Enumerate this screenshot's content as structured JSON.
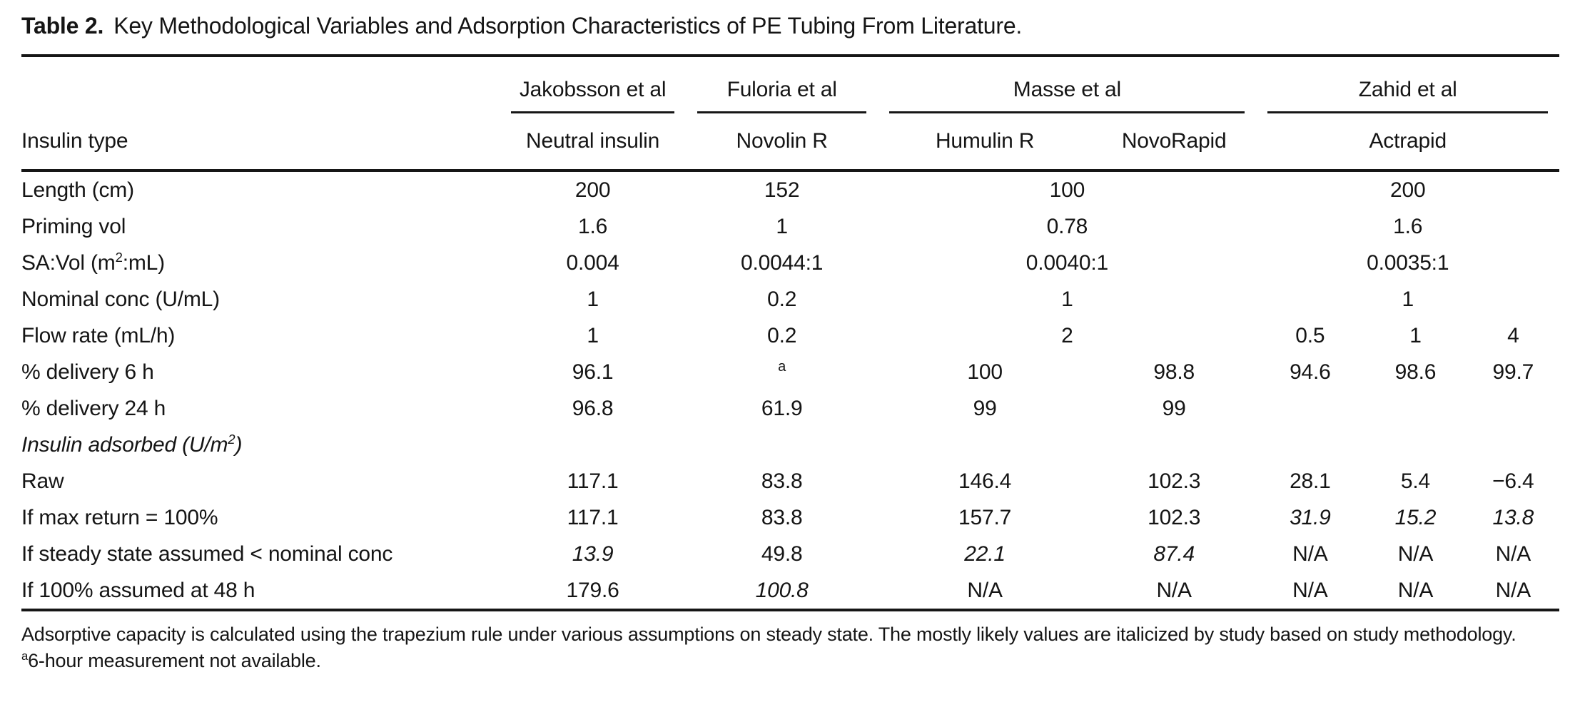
{
  "title": {
    "label": "Table 2.",
    "text": "Key Methodological Variables and Adsorption Characteristics of PE Tubing From Literature."
  },
  "colors": {
    "background": "#ffffff",
    "text": "#151515",
    "rules": "#161616"
  },
  "header": {
    "studies": [
      "Jakobsson et al",
      "Fuloria et al",
      "Masse et al",
      "Zahid et al"
    ],
    "row_label": "Insulin type",
    "insulins": [
      "Neutral insulin",
      "Novolin R",
      "Humulin R",
      "NovoRapid",
      "Actrapid"
    ]
  },
  "rows": {
    "len": {
      "label": "Length (cm)",
      "jakobsson": "200",
      "fuloria": "152",
      "masse": "100",
      "zahid": "200"
    },
    "priming": {
      "label": "Priming vol",
      "jakobsson": "1.6",
      "fuloria": "1",
      "masse": "0.78",
      "zahid": "1.6"
    },
    "savol": {
      "label_pre": "SA:Vol (m",
      "label_sup": "2",
      "label_post": ":mL)",
      "jakobsson": "0.004",
      "fuloria": "0.0044:1",
      "masse": "0.0040:1",
      "zahid": "0.0035:1"
    },
    "nominal": {
      "label": "Nominal conc (U/mL)",
      "jakobsson": "1",
      "fuloria": "0.2",
      "masse": "1",
      "zahid": "1"
    },
    "flow": {
      "label": "Flow rate (mL/h)",
      "jakobsson": "1",
      "fuloria": "0.2",
      "masse": "2",
      "zahid_05": "0.5",
      "zahid_1": "1",
      "zahid_4": "4"
    },
    "d6": {
      "label": "% delivery 6 h",
      "jakobsson": "96.1",
      "fuloria_note": "a",
      "humulin": "100",
      "novorapid": "98.8",
      "zahid_05": "94.6",
      "zahid_1": "98.6",
      "zahid_4": "99.7"
    },
    "d24": {
      "label": "% delivery 24 h",
      "jakobsson": "96.8",
      "fuloria": "61.9",
      "humulin": "99",
      "novorapid": "99",
      "zahid_05": "",
      "zahid_1": "",
      "zahid_4": ""
    },
    "adsorbed": {
      "label_pre": "Insulin adsorbed (U/m",
      "label_sup": "2",
      "label_post": ")"
    },
    "raw": {
      "label": "Raw",
      "jakobsson": "117.1",
      "fuloria": "83.8",
      "humulin": "146.4",
      "novorapid": "102.3",
      "zahid_05": "28.1",
      "zahid_1": "5.4",
      "zahid_4": "−6.4"
    },
    "maxret": {
      "label": "If max return = 100%",
      "jakobsson": "117.1",
      "fuloria": "83.8",
      "humulin": "157.7",
      "novorapid": "102.3",
      "zahid_05": "31.9",
      "zahid_1": "15.2",
      "zahid_4": "13.8"
    },
    "steady": {
      "label": "If steady state assumed < nominal conc",
      "jakobsson": "13.9",
      "fuloria": "49.8",
      "humulin": "22.1",
      "novorapid": "87.4",
      "zahid_05": "N/A",
      "zahid_1": "N/A",
      "zahid_4": "N/A"
    },
    "h48": {
      "label": "If 100% assumed at 48 h",
      "jakobsson": "179.6",
      "fuloria": "100.8",
      "humulin": "N/A",
      "novorapid": "N/A",
      "zahid_05": "N/A",
      "zahid_1": "N/A",
      "zahid_4": "N/A"
    }
  },
  "footnotes": {
    "general": "Adsorptive capacity is calculated using the trapezium rule under various assumptions on steady state. The mostly likely values are italicized by study based on study methodology.",
    "a_marker": "a",
    "a_text": "6-hour measurement not available."
  }
}
